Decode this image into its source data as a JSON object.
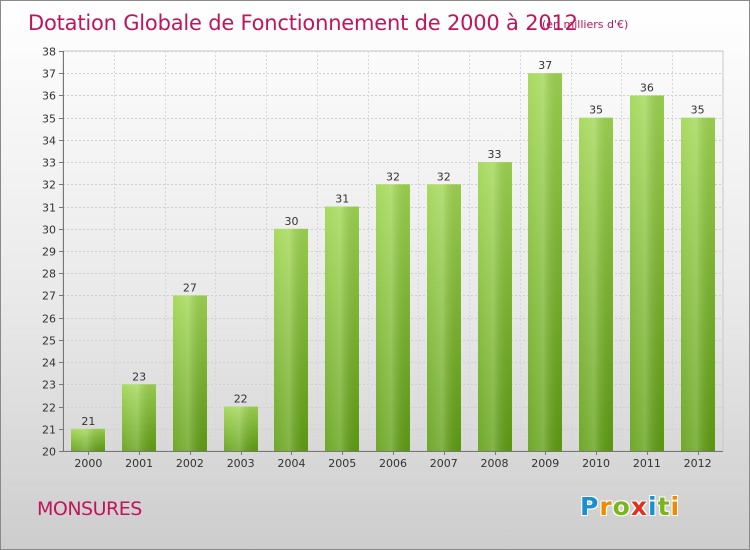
{
  "title": "Dotation Globale de Fonctionnement de 2000 à 2012",
  "subtitle": "(en milliers d'€)",
  "commune": "MONSURES",
  "logo": {
    "letters": [
      "P",
      "r",
      "o",
      "x",
      "i",
      "t",
      "i"
    ],
    "colors": [
      "#1a8fd1",
      "#f08a00",
      "#7ab51d",
      "#e2301f",
      "#1a8fd1",
      "#7ab51d",
      "#f08a00"
    ]
  },
  "colors": {
    "title": "#c0145c",
    "bar_light": "#9fd650",
    "bar_dark": "#5f9e12"
  },
  "chart_data": {
    "type": "bar",
    "categories": [
      "2000",
      "2001",
      "2002",
      "2003",
      "2004",
      "2005",
      "2006",
      "2007",
      "2008",
      "2009",
      "2010",
      "2011",
      "2012"
    ],
    "values": [
      21,
      23,
      27,
      22,
      30,
      31,
      32,
      32,
      33,
      37,
      35,
      36,
      35
    ],
    "ylim": [
      20,
      38
    ],
    "yticks": [
      20,
      21,
      22,
      23,
      24,
      25,
      26,
      27,
      28,
      29,
      30,
      31,
      32,
      33,
      34,
      35,
      36,
      37,
      38
    ],
    "grid": true
  }
}
